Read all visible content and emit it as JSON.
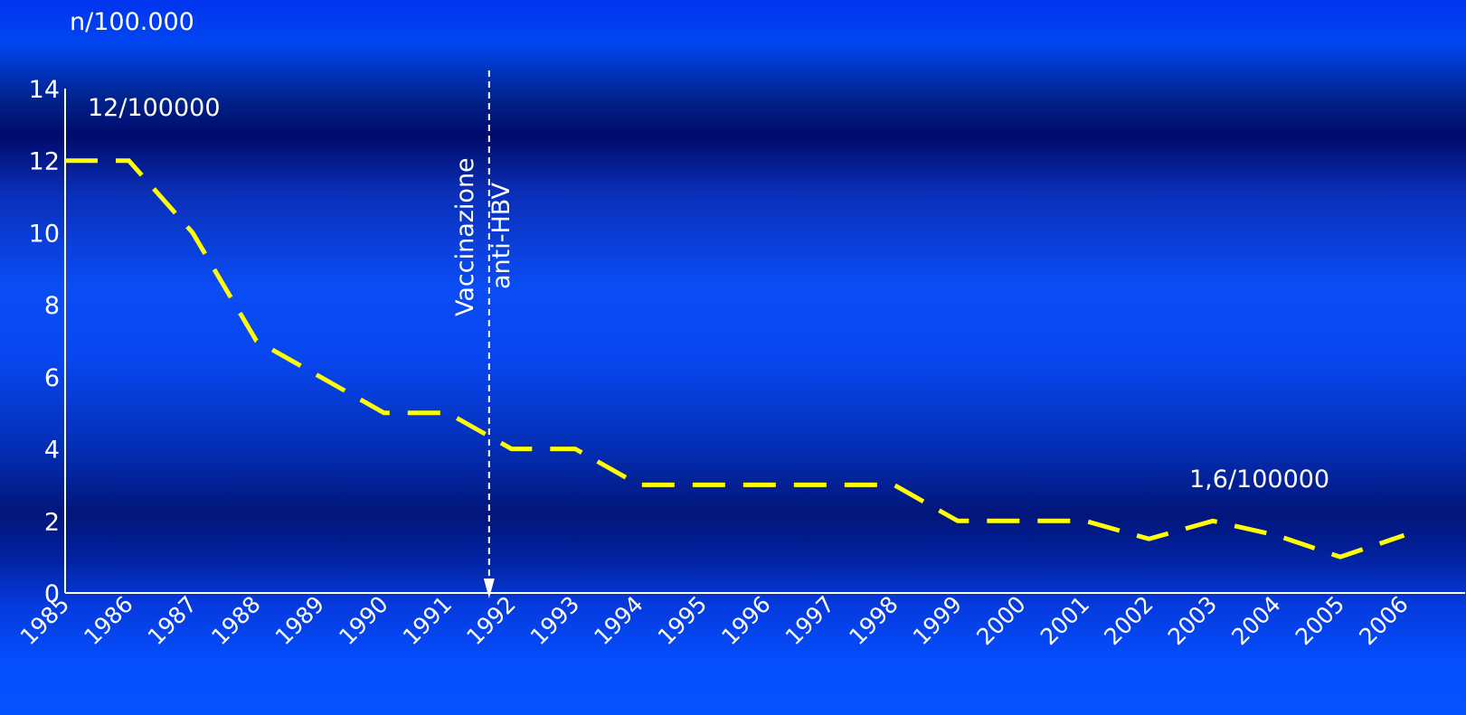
{
  "chart_data": {
    "type": "line",
    "ylabel": "n/100.000",
    "xlabel": "",
    "ylim": [
      0,
      14
    ],
    "yticks": [
      0,
      2,
      4,
      6,
      8,
      10,
      12,
      14
    ],
    "categories": [
      "1985",
      "1986",
      "1987",
      "1988",
      "1989",
      "1990",
      "1991",
      "1992",
      "1993",
      "1994",
      "1995",
      "1996",
      "1997",
      "1998",
      "1999",
      "2000",
      "2001",
      "2002",
      "2003",
      "2004",
      "2005",
      "2006"
    ],
    "series": [
      {
        "color": "#ffff00",
        "style": "dashed",
        "values": [
          12,
          12,
          10,
          7,
          6,
          5,
          5,
          4,
          4,
          3,
          3,
          3,
          3,
          3,
          2,
          2,
          2,
          1.5,
          2,
          1.6,
          1,
          1.6
        ]
      }
    ],
    "annotations": {
      "start_label": "12/100000",
      "end_label": "1,6/100000",
      "marker_line1": "Vaccinazione",
      "marker_line2": "anti-HBV",
      "marker_year": "1991"
    },
    "colors": {
      "line": "#ffff00",
      "axis": "#ffffff",
      "marker": "#ffffff"
    }
  }
}
